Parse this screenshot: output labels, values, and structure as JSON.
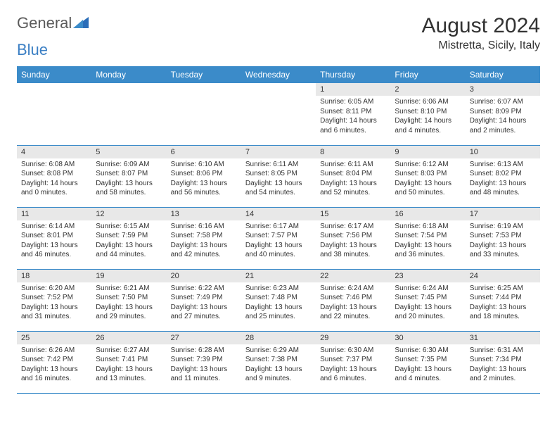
{
  "logo": {
    "part1": "General",
    "part2": "Blue"
  },
  "title": "August 2024",
  "location": "Mistretta, Sicily, Italy",
  "colors": {
    "header_bg": "#3b8bc9",
    "header_text": "#ffffff",
    "daynum_bg": "#e8e8e8",
    "border": "#3b8bc9",
    "logo_gray": "#5a5a5a",
    "logo_blue": "#3b7fc4"
  },
  "dayHeaders": [
    "Sunday",
    "Monday",
    "Tuesday",
    "Wednesday",
    "Thursday",
    "Friday",
    "Saturday"
  ],
  "weeks": [
    [
      {
        "empty": true
      },
      {
        "empty": true
      },
      {
        "empty": true
      },
      {
        "empty": true
      },
      {
        "n": "1",
        "sr": "6:05 AM",
        "ss": "8:11 PM",
        "dl": "14 hours and 6 minutes."
      },
      {
        "n": "2",
        "sr": "6:06 AM",
        "ss": "8:10 PM",
        "dl": "14 hours and 4 minutes."
      },
      {
        "n": "3",
        "sr": "6:07 AM",
        "ss": "8:09 PM",
        "dl": "14 hours and 2 minutes."
      }
    ],
    [
      {
        "n": "4",
        "sr": "6:08 AM",
        "ss": "8:08 PM",
        "dl": "14 hours and 0 minutes."
      },
      {
        "n": "5",
        "sr": "6:09 AM",
        "ss": "8:07 PM",
        "dl": "13 hours and 58 minutes."
      },
      {
        "n": "6",
        "sr": "6:10 AM",
        "ss": "8:06 PM",
        "dl": "13 hours and 56 minutes."
      },
      {
        "n": "7",
        "sr": "6:11 AM",
        "ss": "8:05 PM",
        "dl": "13 hours and 54 minutes."
      },
      {
        "n": "8",
        "sr": "6:11 AM",
        "ss": "8:04 PM",
        "dl": "13 hours and 52 minutes."
      },
      {
        "n": "9",
        "sr": "6:12 AM",
        "ss": "8:03 PM",
        "dl": "13 hours and 50 minutes."
      },
      {
        "n": "10",
        "sr": "6:13 AM",
        "ss": "8:02 PM",
        "dl": "13 hours and 48 minutes."
      }
    ],
    [
      {
        "n": "11",
        "sr": "6:14 AM",
        "ss": "8:01 PM",
        "dl": "13 hours and 46 minutes."
      },
      {
        "n": "12",
        "sr": "6:15 AM",
        "ss": "7:59 PM",
        "dl": "13 hours and 44 minutes."
      },
      {
        "n": "13",
        "sr": "6:16 AM",
        "ss": "7:58 PM",
        "dl": "13 hours and 42 minutes."
      },
      {
        "n": "14",
        "sr": "6:17 AM",
        "ss": "7:57 PM",
        "dl": "13 hours and 40 minutes."
      },
      {
        "n": "15",
        "sr": "6:17 AM",
        "ss": "7:56 PM",
        "dl": "13 hours and 38 minutes."
      },
      {
        "n": "16",
        "sr": "6:18 AM",
        "ss": "7:54 PM",
        "dl": "13 hours and 36 minutes."
      },
      {
        "n": "17",
        "sr": "6:19 AM",
        "ss": "7:53 PM",
        "dl": "13 hours and 33 minutes."
      }
    ],
    [
      {
        "n": "18",
        "sr": "6:20 AM",
        "ss": "7:52 PM",
        "dl": "13 hours and 31 minutes."
      },
      {
        "n": "19",
        "sr": "6:21 AM",
        "ss": "7:50 PM",
        "dl": "13 hours and 29 minutes."
      },
      {
        "n": "20",
        "sr": "6:22 AM",
        "ss": "7:49 PM",
        "dl": "13 hours and 27 minutes."
      },
      {
        "n": "21",
        "sr": "6:23 AM",
        "ss": "7:48 PM",
        "dl": "13 hours and 25 minutes."
      },
      {
        "n": "22",
        "sr": "6:24 AM",
        "ss": "7:46 PM",
        "dl": "13 hours and 22 minutes."
      },
      {
        "n": "23",
        "sr": "6:24 AM",
        "ss": "7:45 PM",
        "dl": "13 hours and 20 minutes."
      },
      {
        "n": "24",
        "sr": "6:25 AM",
        "ss": "7:44 PM",
        "dl": "13 hours and 18 minutes."
      }
    ],
    [
      {
        "n": "25",
        "sr": "6:26 AM",
        "ss": "7:42 PM",
        "dl": "13 hours and 16 minutes."
      },
      {
        "n": "26",
        "sr": "6:27 AM",
        "ss": "7:41 PM",
        "dl": "13 hours and 13 minutes."
      },
      {
        "n": "27",
        "sr": "6:28 AM",
        "ss": "7:39 PM",
        "dl": "13 hours and 11 minutes."
      },
      {
        "n": "28",
        "sr": "6:29 AM",
        "ss": "7:38 PM",
        "dl": "13 hours and 9 minutes."
      },
      {
        "n": "29",
        "sr": "6:30 AM",
        "ss": "7:37 PM",
        "dl": "13 hours and 6 minutes."
      },
      {
        "n": "30",
        "sr": "6:30 AM",
        "ss": "7:35 PM",
        "dl": "13 hours and 4 minutes."
      },
      {
        "n": "31",
        "sr": "6:31 AM",
        "ss": "7:34 PM",
        "dl": "13 hours and 2 minutes."
      }
    ]
  ],
  "labels": {
    "sunrise": "Sunrise: ",
    "sunset": "Sunset: ",
    "daylight": "Daylight: "
  }
}
